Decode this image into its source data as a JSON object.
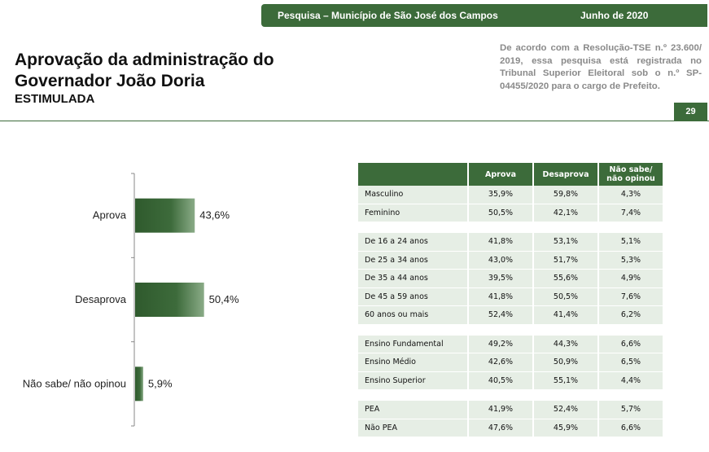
{
  "header": {
    "survey_label": "Pesquisa – Município de São José dos Campos",
    "date_label": "Junho de 2020",
    "title_line1": "Aprovação da administração do",
    "title_line2": "Governador João Doria",
    "subtitle": "ESTIMULADA",
    "legal_text": "De acordo com a Resolução-TSE n.º 23.600/ 2019, essa pesquisa está registrada no Tribunal Superior Eleitoral sob o n.º SP-04455/2020 para o cargo de Prefeito.",
    "page_number": "29"
  },
  "colors": {
    "accent": "#3c6b3a",
    "row_bg": "#e6eee5"
  },
  "chart_data": [
    {
      "type": "bar",
      "orientation": "horizontal",
      "categories": [
        "Aprova",
        "Desaprova",
        "Não sabe/ não opinou"
      ],
      "values": [
        43.6,
        50.4,
        5.9
      ],
      "value_labels": [
        "43,6%",
        "50,4%",
        "5,9%"
      ],
      "xlim": [
        0,
        100
      ],
      "grid": false
    },
    {
      "type": "table",
      "columns": [
        "",
        "Aprova",
        "Desaprova",
        "Não sabe/ não opinou"
      ],
      "column_labels": [
        "",
        "Aprova",
        "Desaprova",
        "Não sabe/\nnão opinou"
      ],
      "groups": [
        [
          [
            "Masculino",
            "35,9%",
            "59,8%",
            "4,3%"
          ],
          [
            "Feminino",
            "50,5%",
            "42,1%",
            "7,4%"
          ]
        ],
        [
          [
            "De 16 a 24 anos",
            "41,8%",
            "53,1%",
            "5,1%"
          ],
          [
            "De 25 a 34 anos",
            "43,0%",
            "51,7%",
            "5,3%"
          ],
          [
            "De 35 a 44 anos",
            "39,5%",
            "55,6%",
            "4,9%"
          ],
          [
            "De 45 a 59 anos",
            "41,8%",
            "50,5%",
            "7,6%"
          ],
          [
            "60 anos ou mais",
            "52,4%",
            "41,4%",
            "6,2%"
          ]
        ],
        [
          [
            "Ensino Fundamental",
            "49,2%",
            "44,3%",
            "6,6%"
          ],
          [
            "Ensino Médio",
            "42,6%",
            "50,9%",
            "6,5%"
          ],
          [
            "Ensino Superior",
            "40,5%",
            "55,1%",
            "4,4%"
          ]
        ],
        [
          [
            "PEA",
            "41,9%",
            "52,4%",
            "5,7%"
          ],
          [
            "Não PEA",
            "47,6%",
            "45,9%",
            "6,6%"
          ]
        ]
      ]
    }
  ]
}
